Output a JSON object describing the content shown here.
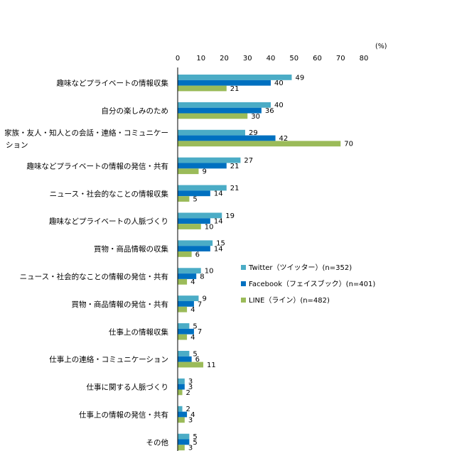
{
  "chart_data": {
    "type": "bar",
    "orientation": "horizontal",
    "unit": "(%)",
    "xlim": [
      0,
      80
    ],
    "xticks": [
      0,
      10,
      20,
      30,
      40,
      50,
      60,
      70,
      80
    ],
    "grid": false,
    "legend_position": "right-middle",
    "categories": [
      [
        "趣味などプライベートの情報収集"
      ],
      [
        "自分の楽しみのため"
      ],
      [
        "家族・友人・知人との会話・連絡・コミュニケー",
        "ション"
      ],
      [
        "趣味などプライベートの情報の発信・共有"
      ],
      [
        "ニュース・社会的なことの情報収集"
      ],
      [
        "趣味などプライベートの人脈づくり"
      ],
      [
        "買物・商品情報の収集"
      ],
      [
        "ニュース・社会的なことの情報の発信・共有"
      ],
      [
        "買物・商品情報の発信・共有"
      ],
      [
        "仕事上の情報収集"
      ],
      [
        "仕事上の連絡・コミュニケーション"
      ],
      [
        "仕事に関する人脈づくり"
      ],
      [
        "仕事上の情報の発信・共有"
      ],
      [
        "その他"
      ]
    ],
    "series": [
      {
        "name": "Twitter（ツイッター）(n=352)",
        "color": "#4BACC6",
        "values": [
          49,
          40,
          29,
          27,
          21,
          19,
          15,
          10,
          9,
          5,
          5,
          3,
          2,
          5
        ]
      },
      {
        "name": "Facebook（フェイスブック）(n=401)",
        "color": "#0070C0",
        "values": [
          40,
          36,
          42,
          21,
          14,
          14,
          14,
          8,
          7,
          7,
          6,
          3,
          4,
          5
        ]
      },
      {
        "name": "LINE（ライン）(n=482)",
        "color": "#9BBB59",
        "values": [
          21,
          30,
          70,
          9,
          5,
          10,
          6,
          4,
          4,
          4,
          11,
          2,
          3,
          3
        ]
      }
    ]
  }
}
